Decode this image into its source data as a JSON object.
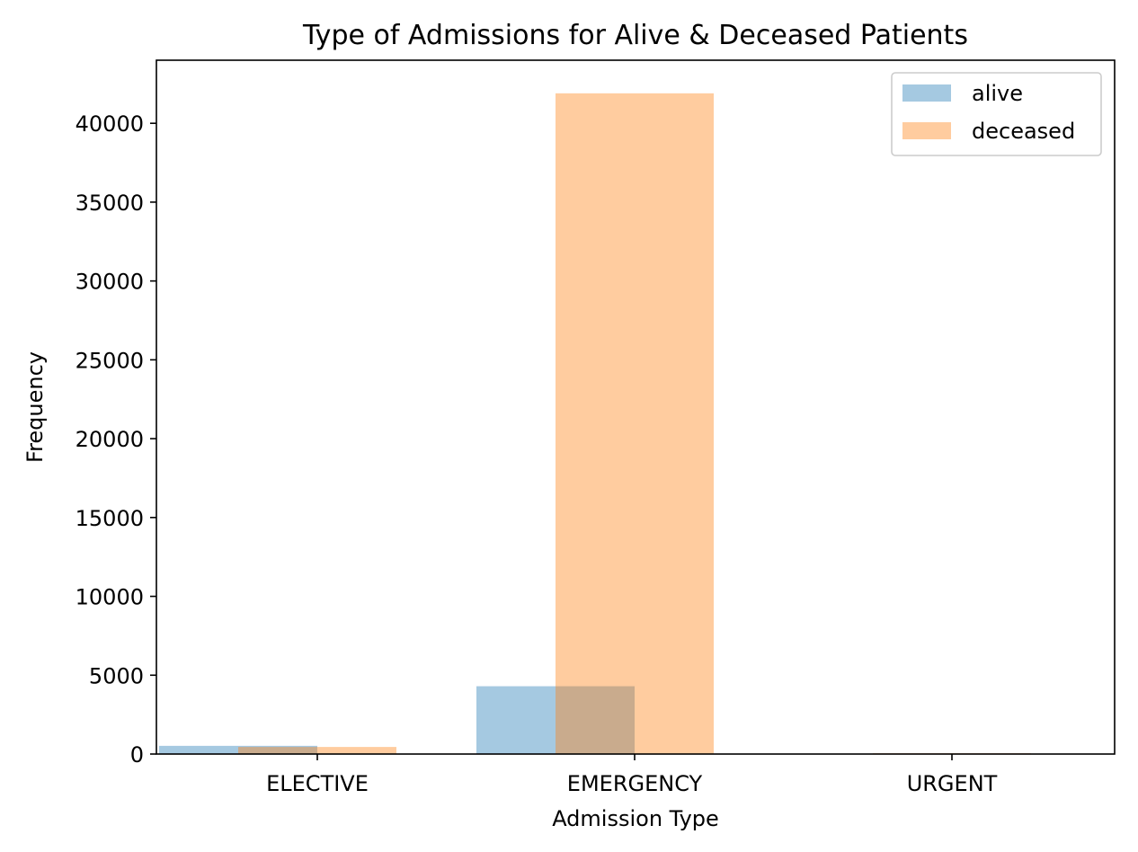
{
  "chart_data": {
    "type": "bar",
    "title": "Type of Admissions for Alive & Deceased Patients",
    "xlabel": "Admission Type",
    "ylabel": "Frequency",
    "categories": [
      "ELECTIVE",
      "EMERGENCY",
      "URGENT"
    ],
    "ylim": [
      0,
      44000
    ],
    "yticks": [
      0,
      5000,
      10000,
      15000,
      20000,
      25000,
      30000,
      35000,
      40000
    ],
    "ytick_labels": [
      "0",
      "5000",
      "10000",
      "15000",
      "20000",
      "25000",
      "30000",
      "35000",
      "40000"
    ],
    "grid": false,
    "legend_position": "top-right",
    "series": [
      {
        "name": "alive",
        "values": [
          520,
          4300,
          0
        ],
        "color": "#1f77b4",
        "opacity": 0.4
      },
      {
        "name": "deceased",
        "values": [
          450,
          41900,
          50
        ],
        "color": "#ff7f0e",
        "opacity": 0.4
      }
    ]
  }
}
